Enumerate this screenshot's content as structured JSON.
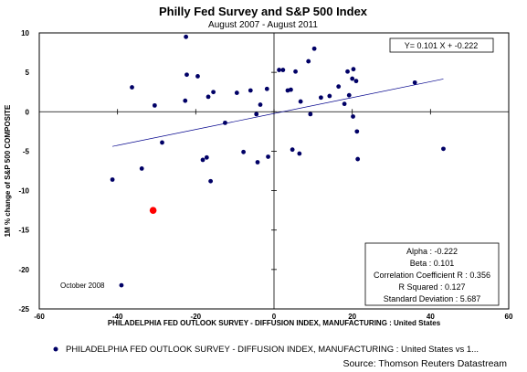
{
  "chart_data": {
    "type": "scatter",
    "title": "Philly Fed Survey and S&P 500 Index",
    "subtitle": "August 2007 - August 2011",
    "xlabel": "PHILADELPHIA FED OUTLOOK SURVEY - DIFFUSION INDEX, MANUFACTURING : United States",
    "ylabel": "1M % change of S&P 500 COMPOSITE",
    "xlim": [
      -60,
      60
    ],
    "ylim": [
      -25,
      10
    ],
    "xticks": [
      "-60",
      "-40",
      "-20",
      "0",
      "20",
      "40",
      "60"
    ],
    "yticks": [
      "10",
      "5",
      "0",
      "-5",
      "-10",
      "-15",
      "-20",
      "-25"
    ],
    "points": [
      {
        "x": -22.5,
        "y": 9.5
      },
      {
        "x": -22.3,
        "y": 4.7
      },
      {
        "x": -22.7,
        "y": 1.4
      },
      {
        "x": -19.5,
        "y": 4.5
      },
      {
        "x": -16.8,
        "y": 1.9
      },
      {
        "x": -15.5,
        "y": 2.5
      },
      {
        "x": -36.3,
        "y": 3.1
      },
      {
        "x": -30.5,
        "y": 0.8
      },
      {
        "x": -12.5,
        "y": -1.4
      },
      {
        "x": -28.6,
        "y": -3.9
      },
      {
        "x": -33.8,
        "y": -7.2
      },
      {
        "x": -41.3,
        "y": -8.6
      },
      {
        "x": -18.2,
        "y": -6.1
      },
      {
        "x": -17.2,
        "y": -5.8
      },
      {
        "x": -16.2,
        "y": -8.8
      },
      {
        "x": -7.8,
        "y": -5.1
      },
      {
        "x": -4.2,
        "y": -6.4
      },
      {
        "x": -1.5,
        "y": -5.7
      },
      {
        "x": -9.5,
        "y": 2.4
      },
      {
        "x": -6.0,
        "y": 2.7
      },
      {
        "x": -4.5,
        "y": -0.3
      },
      {
        "x": -3.5,
        "y": 0.9
      },
      {
        "x": -1.8,
        "y": 2.9
      },
      {
        "x": 1.3,
        "y": 5.3
      },
      {
        "x": 2.3,
        "y": 5.3
      },
      {
        "x": 3.5,
        "y": 2.7
      },
      {
        "x": 4.3,
        "y": 2.8
      },
      {
        "x": 5.5,
        "y": 5.1
      },
      {
        "x": 6.8,
        "y": 1.3
      },
      {
        "x": 4.7,
        "y": -4.8
      },
      {
        "x": 6.5,
        "y": -5.3
      },
      {
        "x": 8.8,
        "y": 6.4
      },
      {
        "x": 10.3,
        "y": 8.0
      },
      {
        "x": 9.3,
        "y": -0.3
      },
      {
        "x": 12.0,
        "y": 1.8
      },
      {
        "x": 14.2,
        "y": 2.0
      },
      {
        "x": 16.5,
        "y": 3.2
      },
      {
        "x": 18.0,
        "y": 1.0
      },
      {
        "x": 18.8,
        "y": 5.1
      },
      {
        "x": 19.2,
        "y": 2.1
      },
      {
        "x": 20.3,
        "y": 5.4
      },
      {
        "x": 20.0,
        "y": 4.2
      },
      {
        "x": 20.2,
        "y": -0.6
      },
      {
        "x": 21.0,
        "y": 3.9
      },
      {
        "x": 21.2,
        "y": -2.5
      },
      {
        "x": 21.4,
        "y": -6.0
      },
      {
        "x": 36.0,
        "y": 3.7
      },
      {
        "x": 43.3,
        "y": -4.7
      },
      {
        "x": -39.0,
        "y": -22.0
      }
    ],
    "highlight_point": {
      "x": -30.9,
      "y": -12.5,
      "color": "#ff0000"
    },
    "point_color": "#000066",
    "annotation": "October 2008",
    "trendline": {
      "slope": 0.101,
      "intercept": -0.222,
      "x_range": [
        -41.3,
        43.3
      ],
      "label": "Y= 0.101 X + -0.222",
      "color": "#00008b"
    },
    "stats": [
      {
        "label": "Alpha : -0.222"
      },
      {
        "label": "Beta : 0.101"
      },
      {
        "label": "Correlation Coefficient R   : 0.356"
      },
      {
        "label": "R Squared   : 0.127"
      },
      {
        "label": "Standard Deviation   : 5.687"
      }
    ],
    "legend": "PHILADELPHIA FED OUTLOOK SURVEY - DIFFUSION INDEX, MANUFACTURING : United States vs 1...",
    "legend_position": "bottom",
    "source": "Source: Thomson Reuters Datastream",
    "grid": false
  }
}
